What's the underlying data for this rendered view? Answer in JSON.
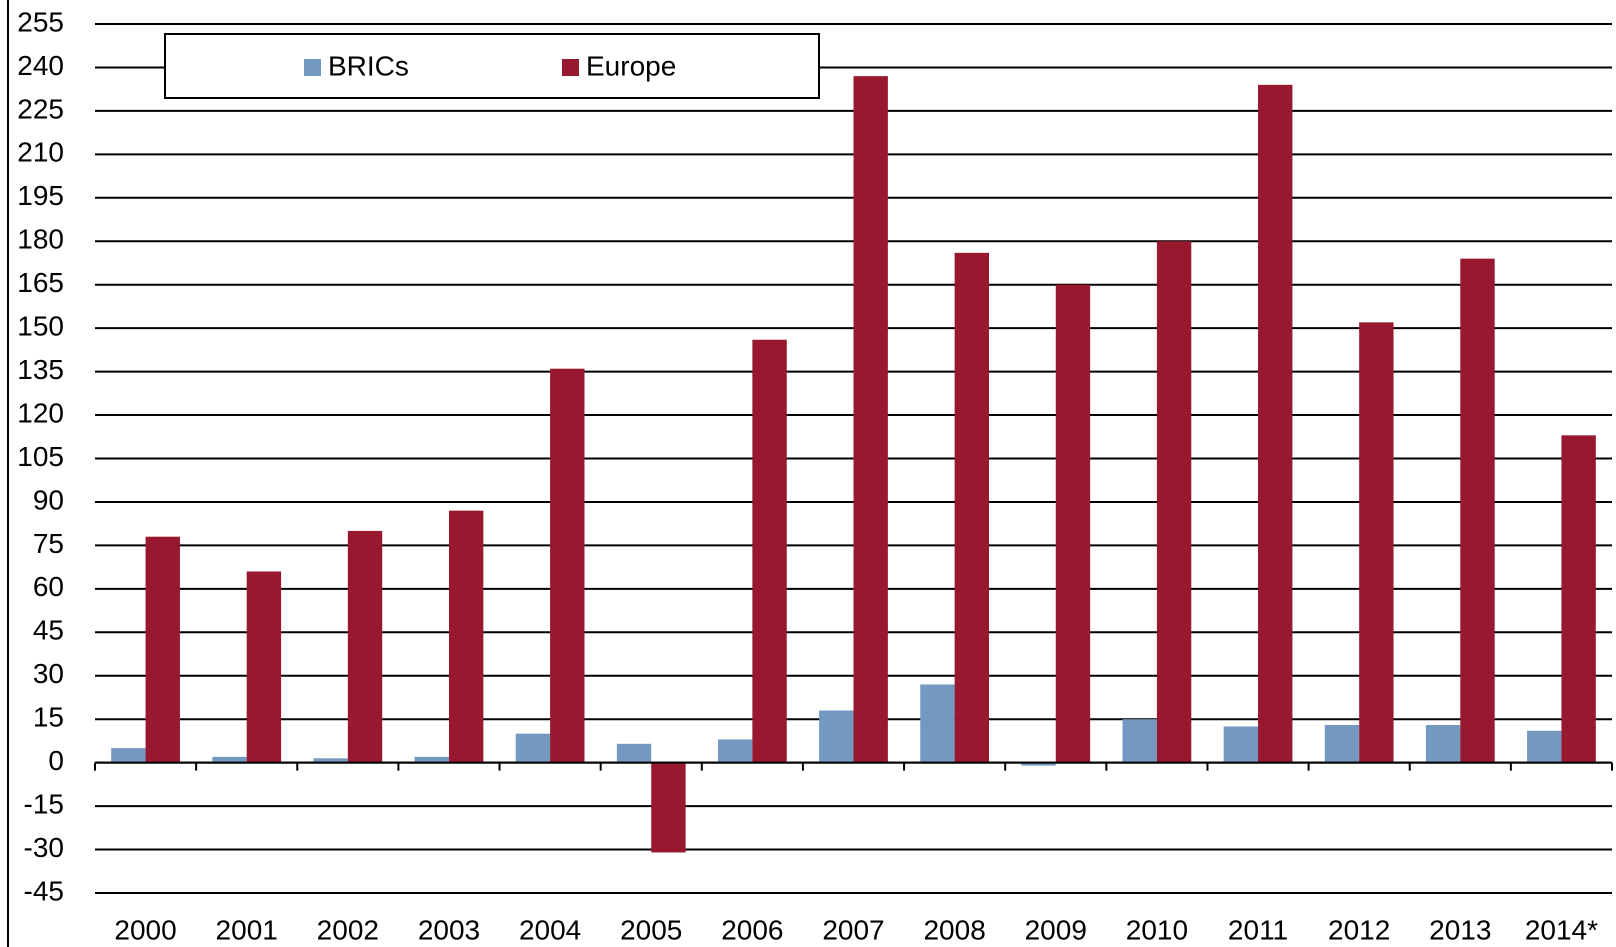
{
  "chart_data": {
    "type": "bar",
    "categories": [
      "2000",
      "2001",
      "2002",
      "2003",
      "2004",
      "2005",
      "2006",
      "2007",
      "2008",
      "2009",
      "2010",
      "2011",
      "2012",
      "2013",
      "2014*"
    ],
    "series": [
      {
        "name": "BRICs",
        "color": "#7399c0",
        "values": [
          5,
          2,
          1.5,
          2,
          10,
          6.5,
          8,
          18,
          27,
          -1,
          15,
          12.5,
          13,
          13,
          11
        ]
      },
      {
        "name": "Europe",
        "color": "#981830",
        "values": [
          78,
          66,
          80,
          87,
          136,
          -31,
          146,
          237,
          176,
          165,
          180,
          234,
          152,
          174,
          113
        ]
      }
    ],
    "ylim": [
      -45,
      255
    ],
    "yticks": [
      -45,
      -30,
      -15,
      0,
      15,
      30,
      45,
      60,
      75,
      90,
      105,
      120,
      135,
      150,
      165,
      180,
      195,
      210,
      225,
      240,
      255
    ],
    "grid": true,
    "legend": "top"
  }
}
